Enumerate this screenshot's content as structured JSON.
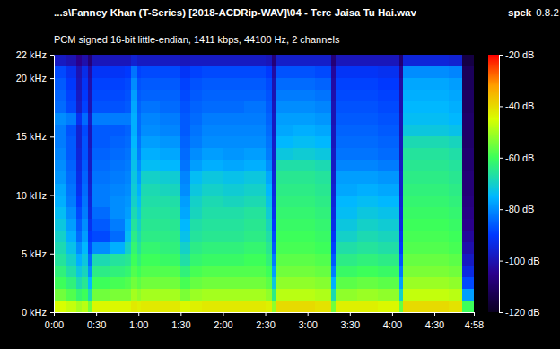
{
  "chart_data": {
    "type": "heatmap",
    "title": "...s\\Fanney Khan (T-Series) [2018-ACDRip-WAV]\\04 - Tere Jaisa Tu Hai.wav",
    "subtitle": "PCM signed 16-bit little-endian, 1411 kbps, 44100 Hz, 2 channels",
    "annotations": [
      "spek",
      "0.8.2"
    ],
    "xlim": [
      0,
      298
    ],
    "xticks": [
      {
        "value": 0,
        "label": "0:00"
      },
      {
        "value": 30,
        "label": "0:30"
      },
      {
        "value": 60,
        "label": "1:00"
      },
      {
        "value": 90,
        "label": "1:30"
      },
      {
        "value": 120,
        "label": "2:00"
      },
      {
        "value": 150,
        "label": "2:30"
      },
      {
        "value": 180,
        "label": "3:00"
      },
      {
        "value": 210,
        "label": "3:30"
      },
      {
        "value": 240,
        "label": "4:00"
      },
      {
        "value": 270,
        "label": "4:30"
      },
      {
        "value": 298,
        "label": "4:58"
      }
    ],
    "ylim": [
      0,
      22
    ],
    "yticks": [
      {
        "value": 0,
        "label": "0 kHz"
      },
      {
        "value": 5,
        "label": "5 kHz"
      },
      {
        "value": 10,
        "label": "10 kHz"
      },
      {
        "value": 15,
        "label": "15 kHz"
      },
      {
        "value": 20,
        "label": "20 kHz"
      },
      {
        "value": 22,
        "label": "22 kHz"
      }
    ],
    "x_bins": [
      0,
      8,
      16,
      20,
      24,
      27,
      40,
      50,
      55,
      59,
      62,
      75,
      90,
      97,
      105,
      120,
      135,
      150,
      155,
      158,
      170,
      185,
      197,
      200,
      215,
      230,
      245,
      248,
      265,
      280,
      290,
      298
    ],
    "y_bins": [
      0,
      1,
      2,
      3,
      4,
      5,
      6,
      7,
      8,
      9,
      10,
      11,
      12,
      13,
      14,
      15,
      16,
      17,
      18,
      19,
      20,
      21,
      22
    ],
    "cells": [
      [
        -45,
        -55,
        -60,
        -63,
        -66,
        -68,
        -70,
        -72,
        -74,
        -76,
        -77,
        -79,
        -80,
        -81,
        -82,
        -82,
        -80,
        -84,
        -85,
        -86,
        -88,
        -98
      ],
      [
        -47,
        -58,
        -63,
        -67,
        -70,
        -73,
        -76,
        -78,
        -80,
        -82,
        -83,
        -84,
        -85,
        -86,
        -86,
        -87,
        -82,
        -88,
        -89,
        -90,
        -92,
        -100
      ],
      [
        -50,
        -62,
        -68,
        -72,
        -76,
        -80,
        -84,
        -86,
        -88,
        -90,
        -92,
        -93,
        -94,
        -95,
        -96,
        -96,
        -92,
        -97,
        -98,
        -99,
        -100,
        -105
      ],
      [
        -48,
        -60,
        -65,
        -69,
        -72,
        -75,
        -78,
        -80,
        -82,
        -83,
        -84,
        -85,
        -86,
        -87,
        -87,
        -88,
        -84,
        -89,
        -90,
        -91,
        -93,
        -101
      ],
      [
        -55,
        -68,
        -75,
        -80,
        -84,
        -88,
        -90,
        -92,
        -94,
        -95,
        -96,
        -97,
        -98,
        -98,
        -99,
        -99,
        -97,
        -100,
        -100,
        -101,
        -102,
        -108
      ],
      [
        -44,
        -55,
        -60,
        -64,
        -68,
        -80,
        -88,
        -86,
        -84,
        -82,
        -82,
        -83,
        -84,
        -85,
        -86,
        -86,
        -82,
        -87,
        -88,
        -89,
        -91,
        -99
      ],
      [
        -44,
        -54,
        -59,
        -63,
        -66,
        -76,
        -84,
        -82,
        -80,
        -80,
        -81,
        -82,
        -83,
        -84,
        -85,
        -86,
        -82,
        -87,
        -88,
        -89,
        -91,
        -99
      ],
      [
        -44,
        -54,
        -58,
        -62,
        -65,
        -70,
        -74,
        -76,
        -78,
        -79,
        -80,
        -81,
        -82,
        -83,
        -84,
        -85,
        -82,
        -86,
        -87,
        -88,
        -90,
        -99
      ],
      [
        -42,
        -50,
        -55,
        -58,
        -60,
        -62,
        -64,
        -66,
        -68,
        -70,
        -71,
        -72,
        -73,
        -74,
        -75,
        -76,
        -76,
        -77,
        -78,
        -80,
        -83,
        -96
      ],
      [
        -43,
        -52,
        -57,
        -60,
        -63,
        -66,
        -68,
        -70,
        -72,
        -74,
        -76,
        -78,
        -80,
        -82,
        -83,
        -84,
        -84,
        -85,
        -86,
        -87,
        -89,
        -98
      ],
      [
        -42,
        -50,
        -55,
        -58,
        -60,
        -62,
        -64,
        -65,
        -66,
        -67,
        -68,
        -70,
        -74,
        -76,
        -78,
        -80,
        -81,
        -83,
        -85,
        -86,
        -88,
        -98
      ],
      [
        -42,
        -50,
        -55,
        -58,
        -61,
        -63,
        -64,
        -65,
        -66,
        -67,
        -69,
        -71,
        -75,
        -77,
        -79,
        -81,
        -82,
        -84,
        -85,
        -86,
        -88,
        -98
      ],
      [
        -44,
        -54,
        -59,
        -63,
        -67,
        -70,
        -73,
        -75,
        -77,
        -78,
        -80,
        -81,
        -83,
        -84,
        -85,
        -86,
        -86,
        -87,
        -88,
        -89,
        -91,
        -99
      ],
      [
        -43,
        -51,
        -56,
        -59,
        -62,
        -64,
        -66,
        -67,
        -69,
        -70,
        -72,
        -74,
        -78,
        -80,
        -82,
        -83,
        -84,
        -85,
        -86,
        -87,
        -89,
        -98
      ],
      [
        -42,
        -50,
        -55,
        -58,
        -61,
        -63,
        -65,
        -66,
        -67,
        -68,
        -70,
        -72,
        -76,
        -78,
        -80,
        -81,
        -82,
        -84,
        -85,
        -86,
        -88,
        -98
      ],
      [
        -42,
        -50,
        -55,
        -58,
        -61,
        -63,
        -65,
        -66,
        -67,
        -69,
        -71,
        -73,
        -77,
        -79,
        -80,
        -81,
        -82,
        -84,
        -85,
        -86,
        -88,
        -98
      ],
      [
        -42,
        -50,
        -55,
        -58,
        -60,
        -62,
        -64,
        -65,
        -66,
        -68,
        -70,
        -72,
        -76,
        -78,
        -80,
        -81,
        -82,
        -83,
        -85,
        -86,
        -88,
        -98
      ],
      [
        -43,
        -52,
        -57,
        -60,
        -63,
        -65,
        -67,
        -69,
        -71,
        -73,
        -75,
        -77,
        -80,
        -82,
        -83,
        -84,
        -85,
        -86,
        -87,
        -88,
        -90,
        -99
      ],
      [
        -52,
        -64,
        -72,
        -78,
        -82,
        -86,
        -88,
        -90,
        -92,
        -93,
        -94,
        -95,
        -96,
        -97,
        -97,
        -98,
        -98,
        -99,
        -100,
        -100,
        -102,
        -108
      ],
      [
        -40,
        -48,
        -52,
        -55,
        -57,
        -59,
        -60,
        -61,
        -62,
        -63,
        -64,
        -65,
        -67,
        -72,
        -75,
        -77,
        -78,
        -80,
        -82,
        -84,
        -87,
        -97
      ],
      [
        -40,
        -48,
        -52,
        -55,
        -57,
        -59,
        -60,
        -61,
        -62,
        -63,
        -64,
        -65,
        -67,
        -71,
        -74,
        -76,
        -78,
        -80,
        -82,
        -84,
        -87,
        -97
      ],
      [
        -41,
        -49,
        -53,
        -56,
        -58,
        -60,
        -61,
        -62,
        -63,
        -64,
        -65,
        -66,
        -68,
        -72,
        -75,
        -77,
        -79,
        -81,
        -83,
        -85,
        -88,
        -97
      ],
      [
        -55,
        -68,
        -76,
        -82,
        -86,
        -89,
        -91,
        -93,
        -94,
        -95,
        -96,
        -97,
        -98,
        -98,
        -99,
        -99,
        -100,
        -100,
        -101,
        -102,
        -103,
        -108
      ],
      [
        -43,
        -52,
        -57,
        -61,
        -64,
        -67,
        -70,
        -72,
        -74,
        -75,
        -77,
        -78,
        -81,
        -83,
        -84,
        -85,
        -86,
        -87,
        -88,
        -89,
        -91,
        -99
      ],
      [
        -43,
        -51,
        -56,
        -60,
        -63,
        -66,
        -68,
        -70,
        -72,
        -74,
        -76,
        -78,
        -81,
        -83,
        -84,
        -85,
        -86,
        -87,
        -88,
        -89,
        -91,
        -99
      ],
      [
        -44,
        -52,
        -57,
        -61,
        -64,
        -67,
        -69,
        -71,
        -73,
        -75,
        -77,
        -79,
        -82,
        -84,
        -85,
        -86,
        -87,
        -88,
        -89,
        -90,
        -92,
        -99
      ],
      [
        -56,
        -70,
        -78,
        -83,
        -87,
        -90,
        -92,
        -94,
        -95,
        -96,
        -97,
        -97,
        -98,
        -99,
        -99,
        -100,
        -100,
        -101,
        -101,
        -102,
        -104,
        -109
      ],
      [
        -40,
        -47,
        -51,
        -54,
        -56,
        -58,
        -59,
        -60,
        -61,
        -62,
        -63,
        -64,
        -65,
        -66,
        -68,
        -72,
        -74,
        -75,
        -76,
        -77,
        -80,
        -95
      ],
      [
        -40,
        -47,
        -51,
        -54,
        -56,
        -58,
        -59,
        -60,
        -61,
        -62,
        -63,
        -64,
        -65,
        -66,
        -68,
        -72,
        -74,
        -75,
        -76,
        -77,
        -80,
        -95
      ],
      [
        -41,
        -48,
        -52,
        -55,
        -57,
        -59,
        -60,
        -61,
        -62,
        -63,
        -64,
        -65,
        -66,
        -67,
        -69,
        -73,
        -75,
        -76,
        -77,
        -78,
        -81,
        -96
      ],
      [
        -60,
        -78,
        -88,
        -94,
        -98,
        -101,
        -103,
        -105,
        -106,
        -107,
        -108,
        -108,
        -109,
        -109,
        -110,
        -110,
        -110,
        -111,
        -111,
        -112,
        -112,
        -115
      ]
    ],
    "colorbar": {
      "range": [
        -120,
        -20
      ],
      "ticks": [
        {
          "value": -20,
          "label": "-20 dB"
        },
        {
          "value": -40,
          "label": "-40 dB"
        },
        {
          "value": -60,
          "label": "-60 dB"
        },
        {
          "value": -80,
          "label": "-80 dB"
        },
        {
          "value": -100,
          "label": "-100 dB"
        },
        {
          "value": -120,
          "label": "-120 dB"
        }
      ]
    }
  }
}
